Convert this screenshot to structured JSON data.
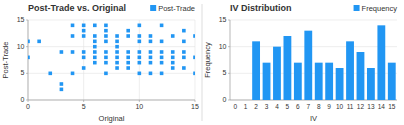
{
  "chart_data": [
    {
      "type": "scatter",
      "title": "Post-Trade vs. Original",
      "x_label": "Original",
      "y_label": "Post-Trade",
      "x": [
        0,
        0,
        1,
        2,
        3,
        3,
        3,
        4,
        4,
        4,
        4,
        5,
        5,
        5,
        5,
        5,
        5,
        6,
        6,
        6,
        6,
        6,
        6,
        6,
        7,
        7,
        7,
        7,
        7,
        7,
        7,
        7,
        8,
        8,
        8,
        8,
        8,
        8,
        8,
        9,
        9,
        9,
        9,
        9,
        9,
        10,
        10,
        10,
        10,
        10,
        10,
        10,
        11,
        11,
        11,
        11,
        11,
        11,
        12,
        12,
        12,
        12,
        12,
        12,
        13,
        13,
        13,
        13,
        13,
        14,
        14,
        14,
        14,
        14,
        15,
        15,
        15
      ],
      "series": [
        {
          "name": "Post-Trade",
          "color": "#2196F3",
          "marker": "square",
          "values": [
            11,
            8,
            11,
            5,
            2,
            3,
            9,
            5,
            9,
            12,
            14,
            6,
            8,
            9,
            12,
            13,
            14,
            7,
            8,
            9,
            10,
            11,
            12,
            14,
            5,
            7,
            8,
            9,
            11,
            12,
            13,
            14,
            6,
            7,
            8,
            9,
            10,
            11,
            12,
            6,
            7,
            8,
            9,
            12,
            13,
            5,
            7,
            8,
            9,
            11,
            12,
            14,
            5,
            7,
            8,
            9,
            11,
            12,
            5,
            7,
            8,
            9,
            11,
            14,
            6,
            7,
            8,
            9,
            12,
            6,
            8,
            9,
            11,
            13,
            5,
            8,
            12
          ]
        }
      ],
      "xlim": [
        0,
        15
      ],
      "ylim": [
        0,
        15
      ],
      "xticks": [
        0,
        5,
        10,
        15
      ],
      "yticks": [
        0,
        5,
        10,
        15
      ],
      "grid": true,
      "legend": "upper right"
    },
    {
      "type": "bar",
      "title": "IV Distribution",
      "x_label": "IV",
      "y_label": "Frequency",
      "categories": [
        0,
        1,
        2,
        3,
        4,
        5,
        6,
        7,
        8,
        9,
        10,
        11,
        12,
        13,
        14,
        15
      ],
      "series": [
        {
          "name": "Frequency",
          "color": "#2196F3",
          "values": [
            0,
            0,
            11,
            7,
            10,
            12,
            7,
            13,
            7,
            7,
            6,
            11,
            9,
            6,
            14,
            7
          ]
        }
      ],
      "ylim": [
        0,
        15
      ],
      "yticks": [
        0,
        5,
        10,
        15
      ],
      "grid": "y",
      "legend": "upper right"
    }
  ]
}
